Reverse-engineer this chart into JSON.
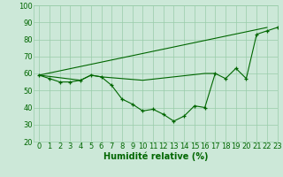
{
  "xlabel": "Humidité relative (%)",
  "background_color": "#cce8d8",
  "grid_color": "#99ccaa",
  "line_color": "#006600",
  "xlim": [
    -0.5,
    23
  ],
  "ylim": [
    20,
    100
  ],
  "xticks": [
    0,
    1,
    2,
    3,
    4,
    5,
    6,
    7,
    8,
    9,
    10,
    11,
    12,
    13,
    14,
    15,
    16,
    17,
    18,
    19,
    20,
    21,
    22,
    23
  ],
  "yticks": [
    20,
    30,
    40,
    50,
    60,
    70,
    80,
    90,
    100
  ],
  "line1_x": [
    0,
    1,
    2,
    3,
    4,
    5,
    6,
    7,
    8,
    9,
    10,
    11,
    12,
    13,
    14,
    15,
    16,
    17,
    18,
    19,
    20,
    21,
    22,
    23
  ],
  "line1_y": [
    59,
    57,
    55,
    55,
    56,
    59,
    58,
    53,
    45,
    42,
    38,
    39,
    36,
    32,
    35,
    41,
    40,
    60,
    57,
    63,
    57,
    83,
    85,
    87
  ],
  "line2_x": [
    0,
    22
  ],
  "line2_y": [
    59,
    87
  ],
  "line3_x": [
    0,
    4,
    5,
    6,
    10,
    16,
    17
  ],
  "line3_y": [
    59,
    56,
    59,
    58,
    56,
    60,
    60
  ],
  "xlabel_fontsize": 7,
  "tick_fontsize": 6
}
